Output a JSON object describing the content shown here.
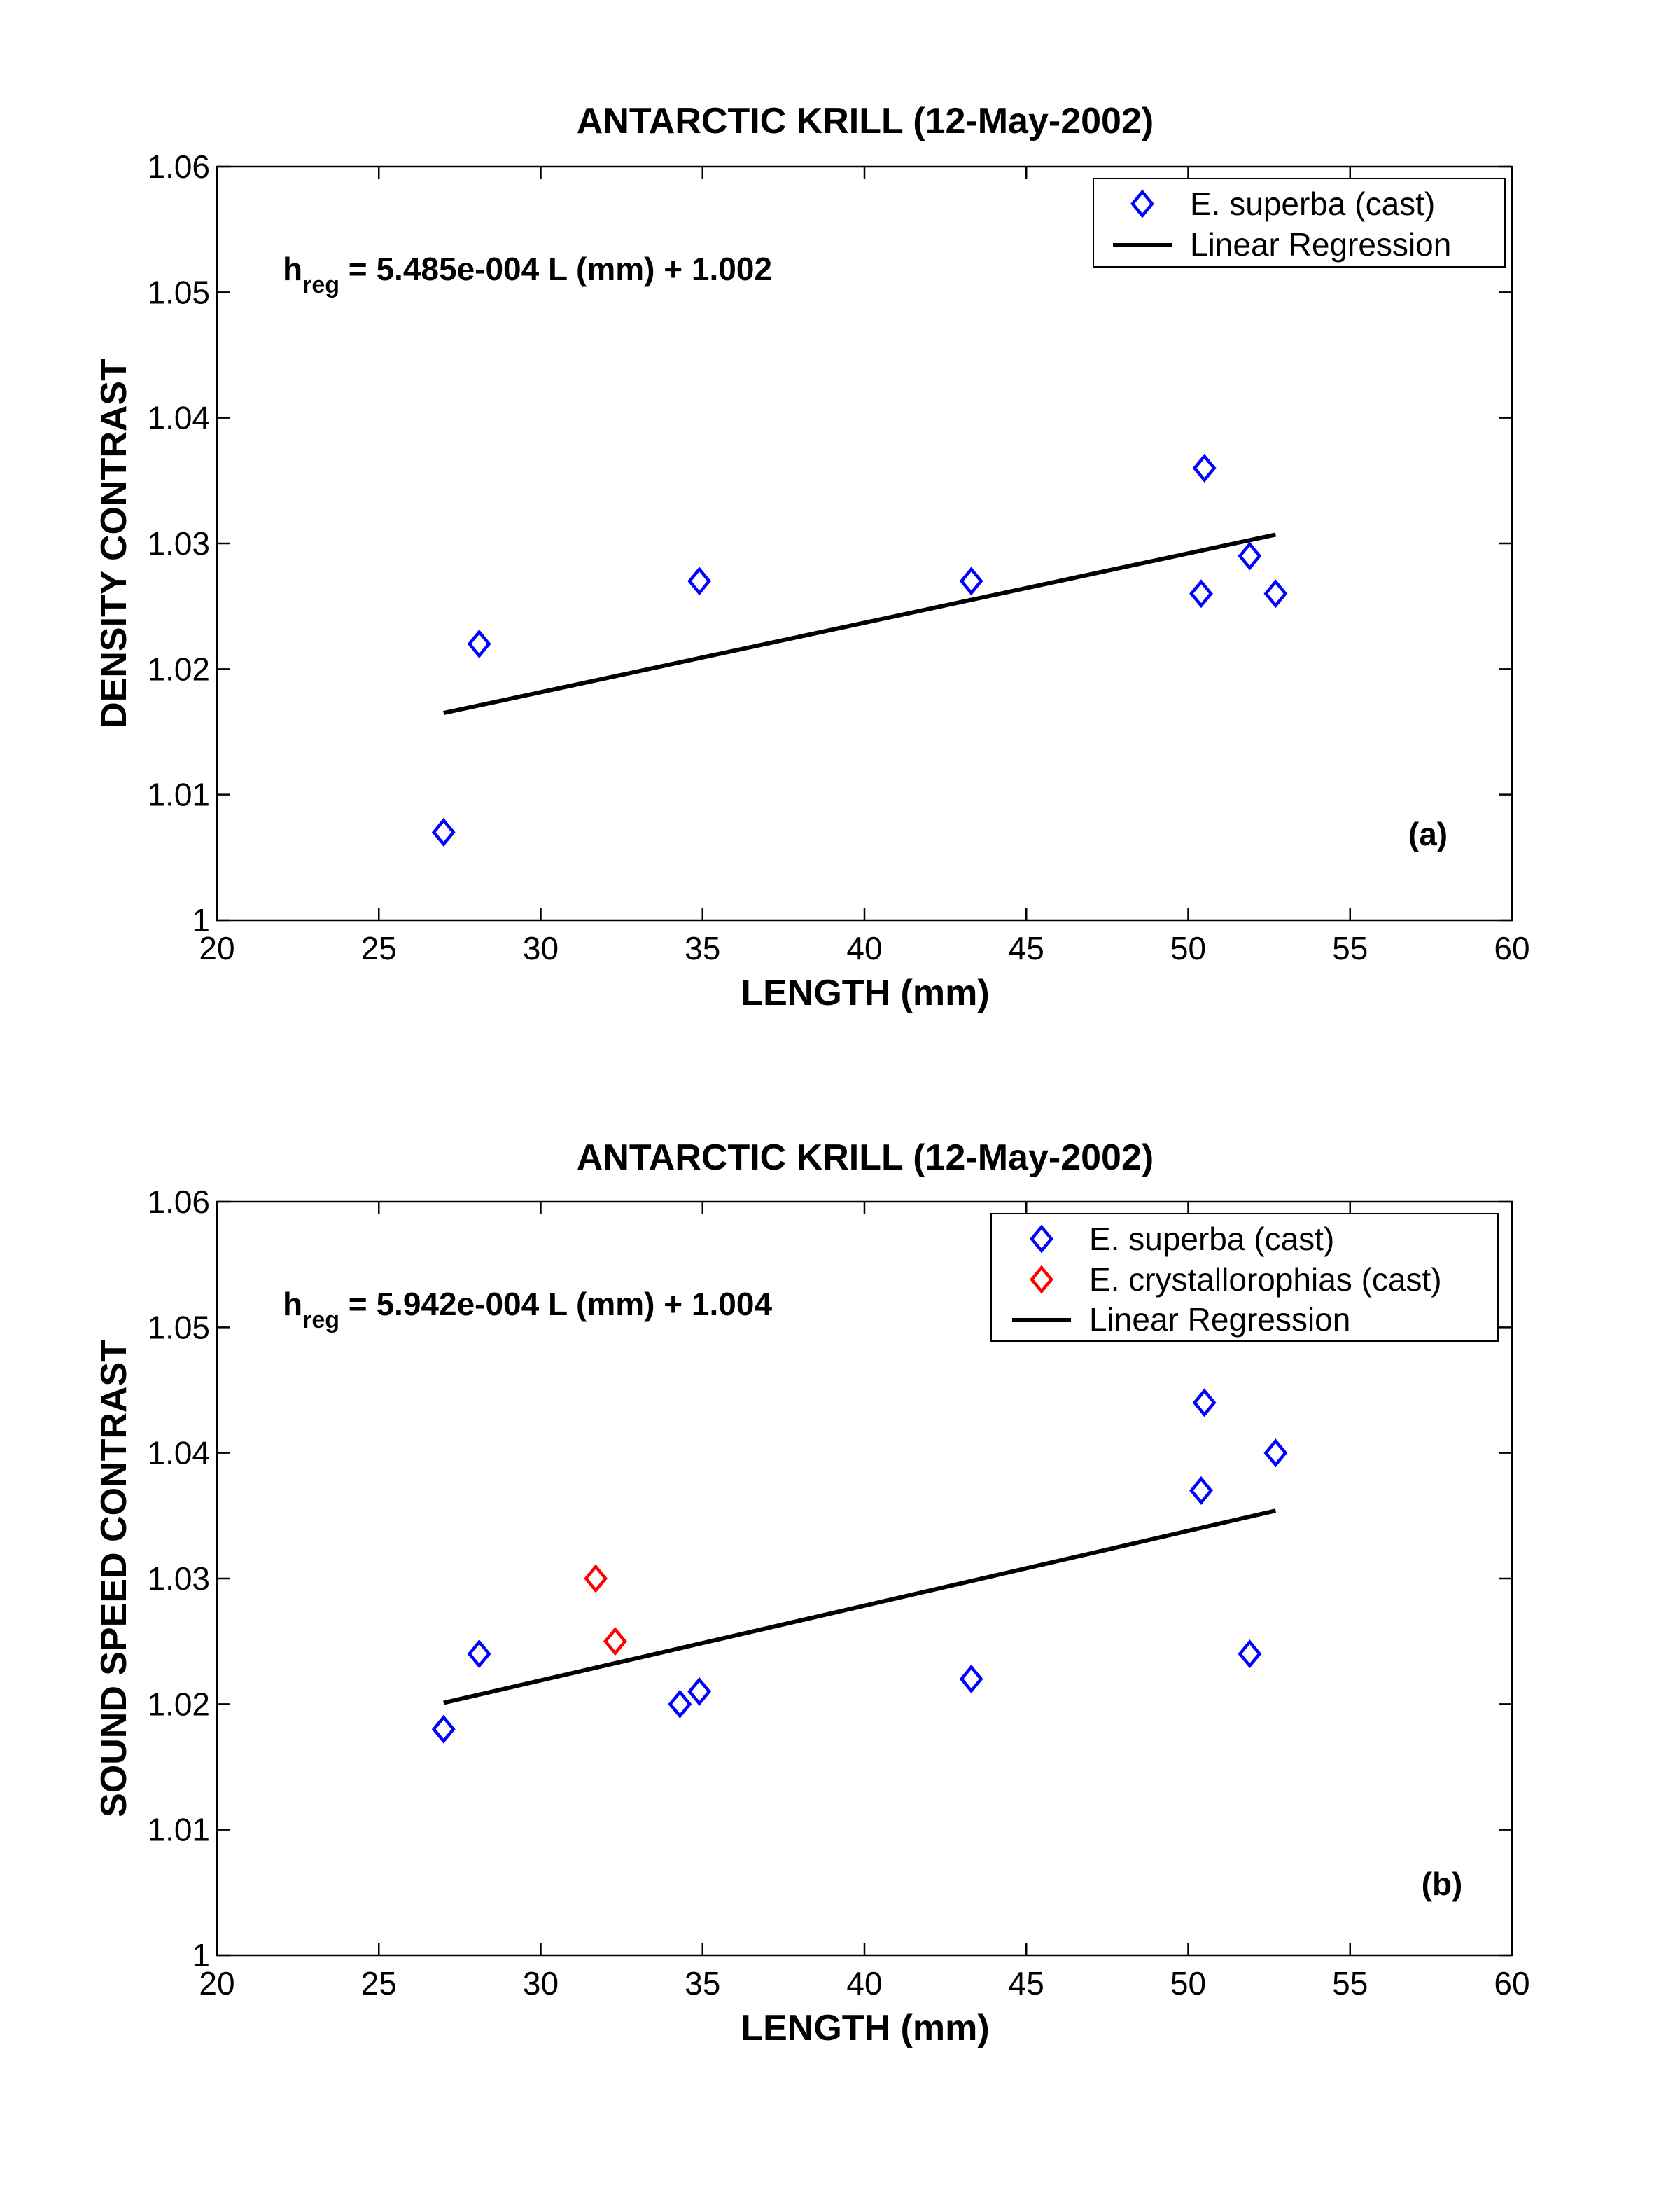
{
  "chart_data": [
    {
      "type": "scatter",
      "title": "ANTARCTIC KRILL (12-May-2002)",
      "xlabel": "LENGTH (mm)",
      "ylabel": "DENSITY CONTRAST",
      "xlim": [
        20,
        60
      ],
      "ylim": [
        1,
        1.06
      ],
      "xticks": [
        20,
        25,
        30,
        35,
        40,
        45,
        50,
        55,
        60
      ],
      "yticks": [
        1,
        1.01,
        1.02,
        1.03,
        1.04,
        1.05,
        1.06
      ],
      "xtick_labels": [
        "20",
        "25",
        "30",
        "35",
        "40",
        "45",
        "50",
        "55",
        "60"
      ],
      "ytick_labels": [
        "1",
        "1.01",
        "1.02",
        "1.03",
        "1.04",
        "1.05",
        "1.06"
      ],
      "grid": false,
      "legend_position": "top-right",
      "equation": {
        "lead": "h",
        "sub": "reg",
        "rest": " = 5.485e-004 L (mm) + 1.002"
      },
      "panel_label": "(a)",
      "series": [
        {
          "name": "E. superba (cast)",
          "marker": "diamond",
          "color": "#0000ff",
          "x": [
            27.0,
            28.1,
            34.9,
            43.3,
            50.4,
            50.5,
            51.9,
            52.7
          ],
          "y": [
            1.007,
            1.022,
            1.027,
            1.027,
            1.026,
            1.036,
            1.029,
            1.026
          ]
        }
      ],
      "regression": {
        "name": "Linear Regression",
        "color": "#000000",
        "x": [
          27.0,
          52.7
        ],
        "y": [
          1.0165,
          1.0307
        ]
      }
    },
    {
      "type": "scatter",
      "title": "ANTARCTIC KRILL (12-May-2002)",
      "xlabel": "LENGTH (mm)",
      "ylabel": "SOUND SPEED CONTRAST",
      "xlim": [
        20,
        60
      ],
      "ylim": [
        1,
        1.06
      ],
      "xticks": [
        20,
        25,
        30,
        35,
        40,
        45,
        50,
        55,
        60
      ],
      "yticks": [
        1,
        1.01,
        1.02,
        1.03,
        1.04,
        1.05,
        1.06
      ],
      "xtick_labels": [
        "20",
        "25",
        "30",
        "35",
        "40",
        "45",
        "50",
        "55",
        "60"
      ],
      "ytick_labels": [
        "1",
        "1.01",
        "1.02",
        "1.03",
        "1.04",
        "1.05",
        "1.06"
      ],
      "grid": false,
      "legend_position": "top-right",
      "equation": {
        "lead": "h",
        "sub": "reg",
        "rest": " = 5.942e-004 L (mm) + 1.004"
      },
      "panel_label": "(b)",
      "series": [
        {
          "name": "E. superba (cast)",
          "marker": "diamond",
          "color": "#0000ff",
          "x": [
            27.0,
            28.1,
            34.3,
            34.9,
            43.3,
            50.4,
            50.5,
            51.9,
            52.7
          ],
          "y": [
            1.018,
            1.024,
            1.02,
            1.021,
            1.022,
            1.037,
            1.044,
            1.024,
            1.04
          ]
        },
        {
          "name": "E. crystallorophias (cast)",
          "marker": "diamond",
          "color": "#ff0000",
          "x": [
            31.7,
            32.3
          ],
          "y": [
            1.03,
            1.025
          ]
        }
      ],
      "regression": {
        "name": "Linear Regression",
        "color": "#000000",
        "x": [
          27.0,
          52.7
        ],
        "y": [
          1.0201,
          1.0354
        ]
      }
    }
  ]
}
